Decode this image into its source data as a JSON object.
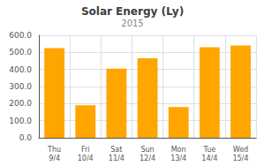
{
  "chart_data": {
    "type": "bar",
    "title": "Solar Energy (Ly)",
    "subtitle": "2015",
    "categories": [
      "Thu\n9/4",
      "Fri\n10/4",
      "Sat\n11/4",
      "Sun\n12/4",
      "Mon\n13/4",
      "Tue\n14/4",
      "Wed\n15/4"
    ],
    "values": [
      525,
      190,
      405,
      465,
      180,
      530,
      540
    ],
    "color": "#FFA500",
    "ylim": [
      0,
      600
    ],
    "yticks": [
      {
        "value": 0,
        "label": "0.0"
      },
      {
        "value": 100,
        "label": "100.0"
      },
      {
        "value": 200,
        "label": "200.0"
      },
      {
        "value": 300,
        "label": "300.0"
      },
      {
        "value": 400,
        "label": "400.0"
      },
      {
        "value": 500,
        "label": "500.0"
      },
      {
        "value": 600,
        "label": "600.0"
      }
    ],
    "grid": true
  }
}
